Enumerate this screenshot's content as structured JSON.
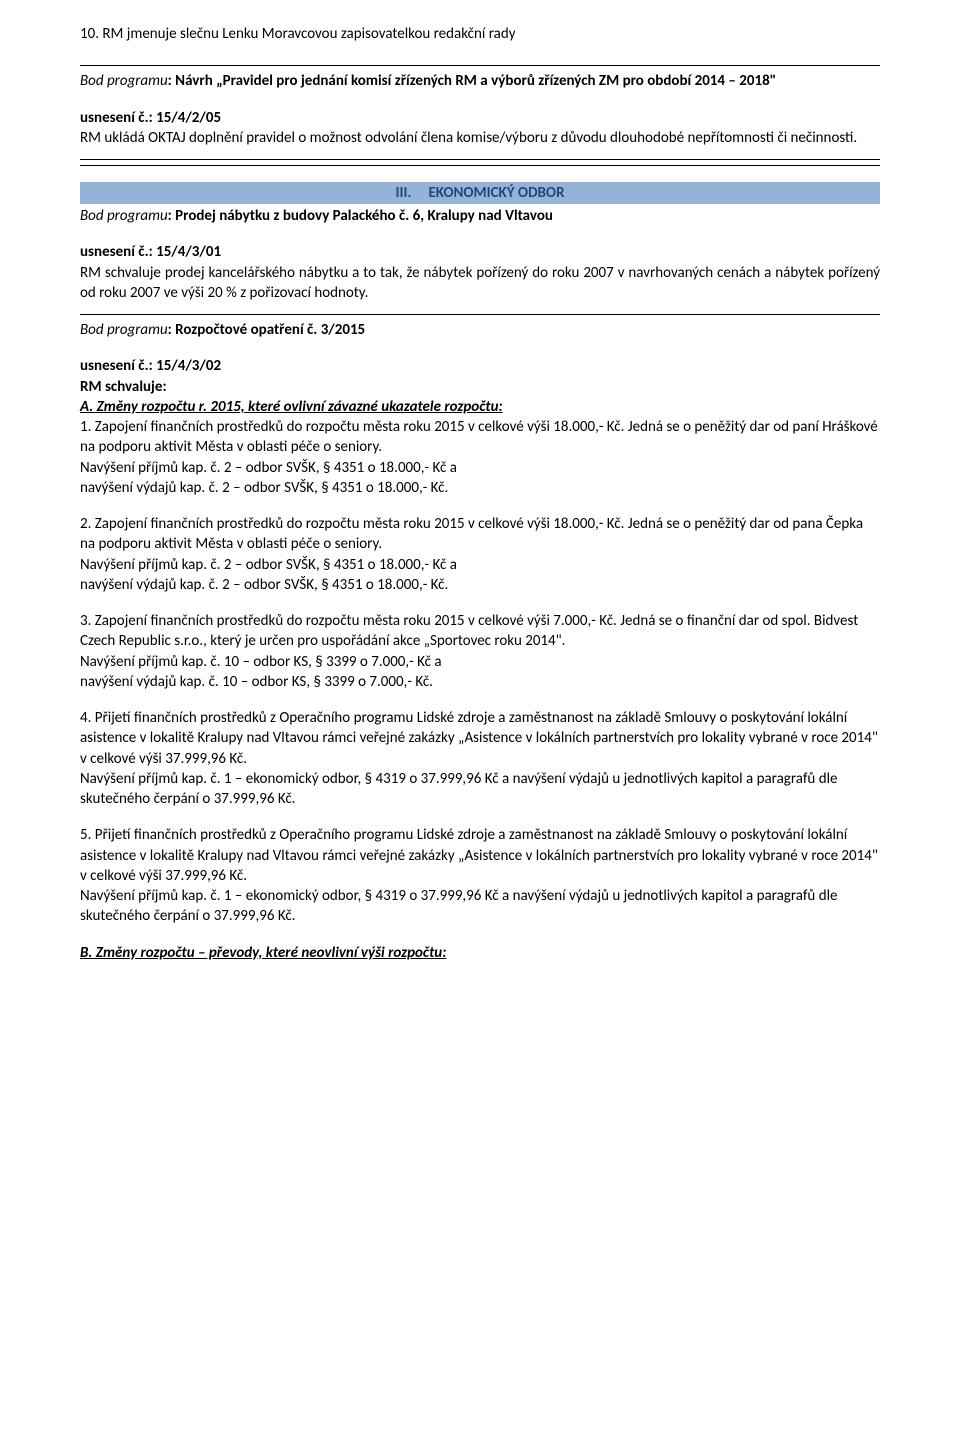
{
  "item10": "10. RM jmenuje slečnu Lenku Moravcovou zapisovatelkou redakční rady",
  "bod1": {
    "label": "Bod programu",
    "text": ": Návrh „Pravidel pro jednání komisí zřízených RM a výborů zřízených ZM pro období 2014 – 2018\""
  },
  "usn1": {
    "label": "usnesení č.: 15/4/2/05",
    "text": "RM ukládá OKTAJ doplnění pravidel o možnost odvolání člena komise/výboru z důvodu dlouhodobé nepřítomnosti či nečinnosti."
  },
  "section3": {
    "num": "III.",
    "title": "EKONOMICKÝ ODBOR"
  },
  "bod2": {
    "label": "Bod programu",
    "text": ": Prodej nábytku z budovy  Palackého č. 6, Kralupy nad Vltavou"
  },
  "usn2": {
    "label": "usnesení č.: 15/4/3/01",
    "text": "RM schvaluje prodej kancelářského nábytku a to tak, že nábytek pořízený do roku 2007 v navrhovaných cenách a nábytek pořízený od roku 2007 ve výši 20 % z pořizovací hodnoty."
  },
  "bod3": {
    "label": "Bod programu",
    "text": ": Rozpočtové opatření č. 3/2015"
  },
  "usn3": {
    "label": "usnesení č.: 15/4/3/02",
    "approve": "RM schvaluje:",
    "A_title": "A. Změny rozpočtu r. 2015, které ovlivní závazné ukazatele rozpočtu:",
    "p1_a": "1. Zapojení finančních prostředků do rozpočtu města roku 2015 v celkové výši 18.000,- Kč. Jedná se o peněžitý dar od paní Hráškové na podporu aktivit Města v oblasti péče o seniory.",
    "p1_b": "Navýšení příjmů kap. č. 2 – odbor SVŠK, § 4351 o 18.000,- Kč a",
    "p1_c": "navýšení výdajů kap. č. 2 – odbor SVŠK, § 4351 o 18.000,- Kč.",
    "p2_a": "2. Zapojení finančních prostředků do rozpočtu města roku 2015 v celkové výši 18.000,- Kč. Jedná se o peněžitý dar od pana Čepka na podporu aktivit Města v oblasti péče o seniory.",
    "p2_b": "Navýšení příjmů kap. č. 2 – odbor SVŠK, § 4351 o 18.000,- Kč a",
    "p2_c": "navýšení výdajů kap. č. 2 – odbor SVŠK, § 4351 o 18.000,- Kč.",
    "p3_a": "3. Zapojení finančních prostředků do rozpočtu města roku 2015 v celkové výši 7.000,- Kč. Jedná se o finanční dar od spol. Bidvest Czech Republic s.r.o., který je určen pro uspořádání akce „Sportovec roku 2014\".",
    "p3_b": "Navýšení příjmů kap. č. 10 – odbor KS, § 3399 o 7.000,- Kč a",
    "p3_c": "navýšení výdajů kap. č. 10 – odbor KS, § 3399 o 7.000,- Kč.",
    "p4_a": "4. Přijetí finančních prostředků z Operačního programu Lidské zdroje a zaměstnanost na základě Smlouvy o poskytování lokální asistence v lokalitě Kralupy nad Vltavou rámci veřejné zakázky „Asistence v lokálních partnerstvích pro lokality vybrané v roce 2014\" v celkové výši 37.999,96 Kč.",
    "p4_b": "Navýšení příjmů kap. č. 1 – ekonomický odbor, § 4319 o 37.999,96 Kč a navýšení výdajů u jednotlivých kapitol a paragrafů dle skutečného čerpání o 37.999,96 Kč.",
    "p5_a": "5. Přijetí finančních prostředků z Operačního programu Lidské zdroje a zaměstnanost na základě Smlouvy o poskytování lokální asistence v lokalitě Kralupy nad Vltavou rámci veřejné zakázky „Asistence v lokálních partnerstvích pro lokality vybrané v roce 2014\" v celkové výši 37.999,96 Kč.",
    "p5_b": "Navýšení příjmů kap. č. 1 – ekonomický odbor, § 4319 o 37.999,96 Kč a navýšení výdajů u jednotlivých kapitol a paragrafů dle skutečného čerpání o 37.999,96 Kč.",
    "B_title": "B. Změny rozpočtu – převody, které neovlivní výši rozpočtu:"
  },
  "style": {
    "highlight_bg": "#95b3d7",
    "heading_color": "#1f497d",
    "body_font": "Calibri"
  }
}
